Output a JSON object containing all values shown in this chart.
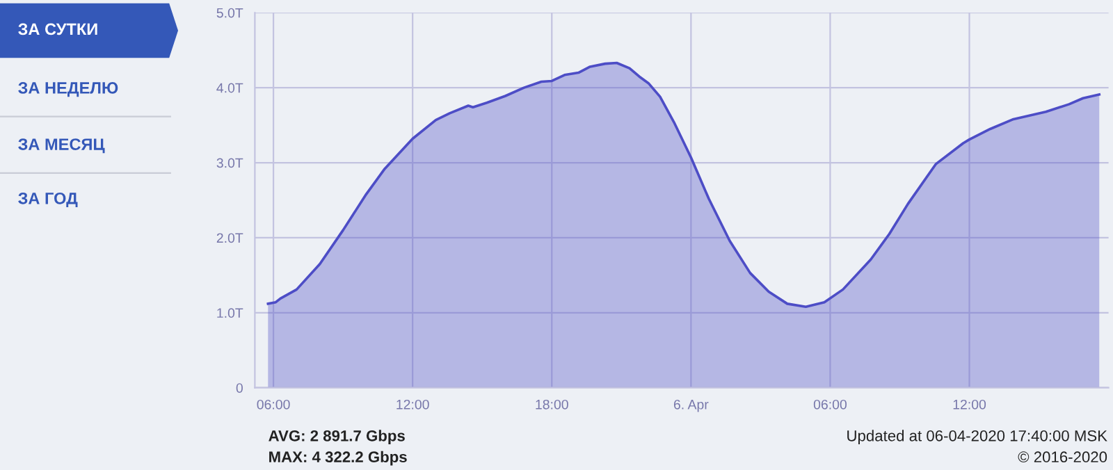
{
  "chart_data": {
    "type": "area",
    "x": [
      "2020-04-05T05:46",
      "2020-04-05T06:06",
      "2020-04-05T06:18",
      "2020-04-05T07:00",
      "2020-04-05T08:00",
      "2020-04-05T09:00",
      "2020-04-05T10:00",
      "2020-04-05T10:48",
      "2020-04-05T12:00",
      "2020-04-05T13:00",
      "2020-04-05T13:36",
      "2020-04-05T14:24",
      "2020-04-05T14:36",
      "2020-04-05T15:12",
      "2020-04-05T16:00",
      "2020-04-05T16:48",
      "2020-04-05T17:33",
      "2020-04-05T18:00",
      "2020-04-05T18:33",
      "2020-04-05T19:09",
      "2020-04-05T19:39",
      "2020-04-05T20:18",
      "2020-04-05T20:48",
      "2020-04-05T21:21",
      "2020-04-05T21:46",
      "2020-04-05T22:10",
      "2020-04-05T22:40",
      "2020-04-05T23:16",
      "2020-04-06T00:00",
      "2020-04-06T00:46",
      "2020-04-06T01:40",
      "2020-04-06T02:33",
      "2020-04-06T03:21",
      "2020-04-06T04:09",
      "2020-04-06T04:57",
      "2020-04-06T05:45",
      "2020-04-06T06:33",
      "2020-04-06T07:45",
      "2020-04-06T08:33",
      "2020-04-06T09:21",
      "2020-04-06T10:33",
      "2020-04-06T11:44",
      "2020-04-06T12:00",
      "2020-04-06T12:54",
      "2020-04-06T13:54",
      "2020-04-06T15:18",
      "2020-04-06T16:18",
      "2020-04-06T16:54",
      "2020-04-06T17:36"
    ],
    "series": [
      {
        "color": "#4d4dc6",
        "values": [
          1.12,
          1.14,
          1.19,
          1.31,
          1.65,
          2.1,
          2.58,
          2.92,
          3.32,
          3.57,
          3.66,
          3.76,
          3.74,
          3.8,
          3.89,
          4.0,
          4.08,
          4.09,
          4.17,
          4.2,
          4.28,
          4.32,
          4.33,
          4.26,
          4.15,
          4.06,
          3.88,
          3.54,
          3.07,
          2.52,
          1.96,
          1.53,
          1.28,
          1.12,
          1.08,
          1.14,
          1.31,
          1.71,
          2.05,
          2.45,
          2.98,
          3.26,
          3.31,
          3.45,
          3.58,
          3.68,
          3.78,
          3.86,
          3.91
        ]
      }
    ],
    "xlim": [
      "2020-04-05T05:12",
      "2020-04-06T18:00"
    ],
    "xticks": [
      {
        "value": "2020-04-05T06:00",
        "label": "06:00"
      },
      {
        "value": "2020-04-05T12:00",
        "label": "12:00"
      },
      {
        "value": "2020-04-05T18:00",
        "label": "18:00"
      },
      {
        "value": "2020-04-06T00:00",
        "label": "6. Apr"
      },
      {
        "value": "2020-04-06T06:00",
        "label": "06:00"
      },
      {
        "value": "2020-04-06T12:00",
        "label": "12:00"
      }
    ],
    "ylim": [
      0,
      5
    ],
    "yticks": [
      0,
      {
        "value": 1,
        "label": "1.0T"
      },
      {
        "value": 2,
        "label": "2.0T"
      },
      {
        "value": 3,
        "label": "3.0T"
      },
      {
        "value": 4,
        "label": "4.0T"
      },
      {
        "value": 5,
        "label": "5.0T"
      }
    ],
    "grid": true,
    "annotations": [
      "ЗА СУТКИ",
      "ЗА НЕДЕЛЮ",
      "ЗА МЕСЯЦ",
      "ЗА ГОД",
      "AVG: 2 891.7 Gbps",
      "MAX: 4 322.2 Gbps",
      "Updated at 06-04-2020 17:40:00 MSK",
      "© 2016-2020"
    ]
  }
}
